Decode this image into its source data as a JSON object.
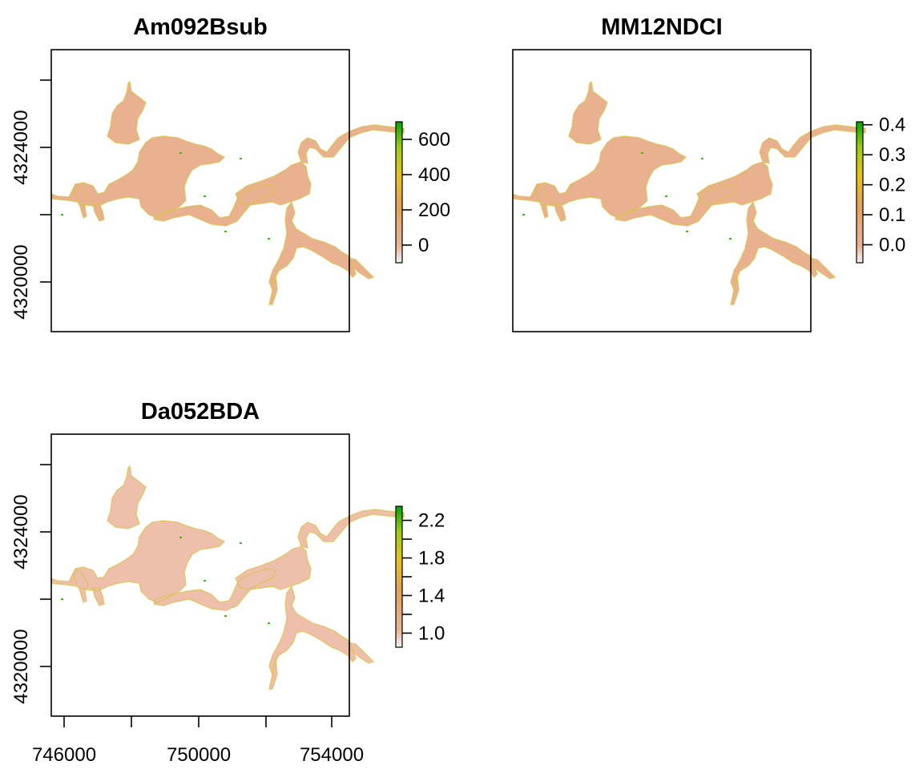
{
  "panels": [
    {
      "title": "Am092Bsub",
      "y_ticks": [
        "4320000",
        "4324000"
      ],
      "x_ticks": [],
      "legend": {
        "labels": [
          "0",
          "200",
          "400",
          "600"
        ],
        "range": [
          -100,
          700
        ],
        "values": [
          0,
          200,
          400,
          600
        ]
      }
    },
    {
      "title": "MM12NDCI",
      "y_ticks": [],
      "x_ticks": [],
      "legend": {
        "labels": [
          "0.0",
          "0.1",
          "0.2",
          "0.3",
          "0.4"
        ],
        "range": [
          -0.06,
          0.41
        ],
        "values": [
          0.0,
          0.1,
          0.2,
          0.3,
          0.4
        ]
      }
    },
    {
      "title": "Da052BDA",
      "y_ticks": [
        "4320000",
        "4324000"
      ],
      "x_ticks": [
        "746000",
        "750000",
        "754000"
      ],
      "legend": {
        "labels": [
          "1.0",
          "1.4",
          "1.8",
          "2.2"
        ],
        "range": [
          0.85,
          2.35
        ],
        "values": [
          1.0,
          1.4,
          1.8,
          2.2
        ],
        "minor_values": [
          1.2,
          1.6,
          2.0
        ]
      }
    }
  ],
  "colors": {
    "water": "#e9b18f",
    "water_light": "#eec0ac",
    "scale": [
      "#f2f2f2",
      "#eab596",
      "#e6a15a",
      "#e9c21c",
      "#9ccc14",
      "#00a600"
    ]
  }
}
